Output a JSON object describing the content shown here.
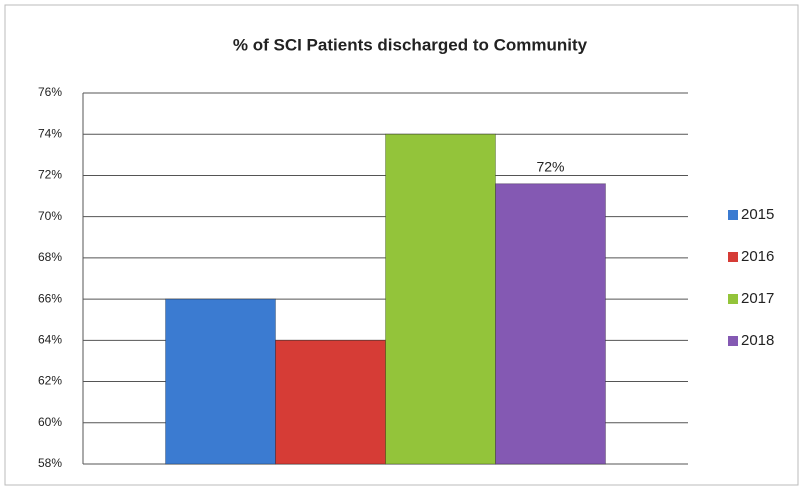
{
  "chart_data": {
    "type": "bar",
    "title": "% of SCI Patients discharged to Community",
    "categories": [
      null
    ],
    "series": [
      {
        "name": "2015",
        "color": "#3b7bd1",
        "values": [
          66
        ]
      },
      {
        "name": "2016",
        "color": "#d63c36",
        "values": [
          64
        ]
      },
      {
        "name": "2017",
        "color": "#93c43a",
        "values": [
          74
        ]
      },
      {
        "name": "2018",
        "color": "#8459b3",
        "values": [
          71.6
        ],
        "value_labels": [
          "72%"
        ]
      }
    ],
    "ylim": [
      58,
      76
    ],
    "yticks": [
      {
        "value": 58,
        "label": "58%"
      },
      {
        "value": 60,
        "label": "60%"
      },
      {
        "value": 62,
        "label": "62%"
      },
      {
        "value": 64,
        "label": "64%"
      },
      {
        "value": 66,
        "label": "66%"
      },
      {
        "value": 68,
        "label": "68%"
      },
      {
        "value": 70,
        "label": "70%"
      },
      {
        "value": 72,
        "label": "72%"
      },
      {
        "value": 74,
        "label": "74%"
      },
      {
        "value": 76,
        "label": "76%"
      }
    ],
    "grid": true,
    "legend": "right"
  }
}
